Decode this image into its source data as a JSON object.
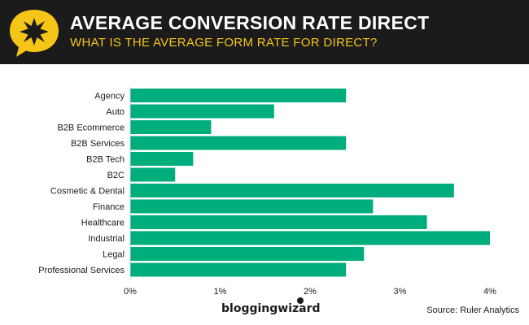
{
  "header": {
    "title": "AVERAGE CONVERSION RATE DIRECT",
    "subtitle": "WHAT IS THE AVERAGE FORM RATE FOR DIRECT?",
    "logo_icon": "star-speech-bubble-icon"
  },
  "footer": {
    "brand": "bloggingwizard",
    "source": "Source: Ruler Analytics"
  },
  "colors": {
    "header_bg": "#1b1b1b",
    "accent": "#f5c518",
    "bar": "#00ad7c"
  },
  "chart_data": {
    "type": "bar",
    "orientation": "horizontal",
    "title": "",
    "xlabel": "",
    "ylabel": "",
    "categories": [
      "Agency",
      "Auto",
      "B2B Ecommerce",
      "B2B Services",
      "B2B Tech",
      "B2C",
      "Cosmetic & Dental",
      "Finance",
      "Healthcare",
      "Industrial",
      "Legal",
      "Professional Services"
    ],
    "values": [
      2.4,
      1.6,
      0.9,
      2.4,
      0.7,
      0.5,
      3.6,
      2.7,
      3.3,
      4.0,
      2.6,
      2.4
    ],
    "xlim": [
      0,
      4
    ],
    "ticks": [
      0,
      1,
      2,
      3,
      4
    ],
    "tick_labels": [
      "0%",
      "1%",
      "2%",
      "3%",
      "4%"
    ],
    "grid": false,
    "legend": "none"
  }
}
